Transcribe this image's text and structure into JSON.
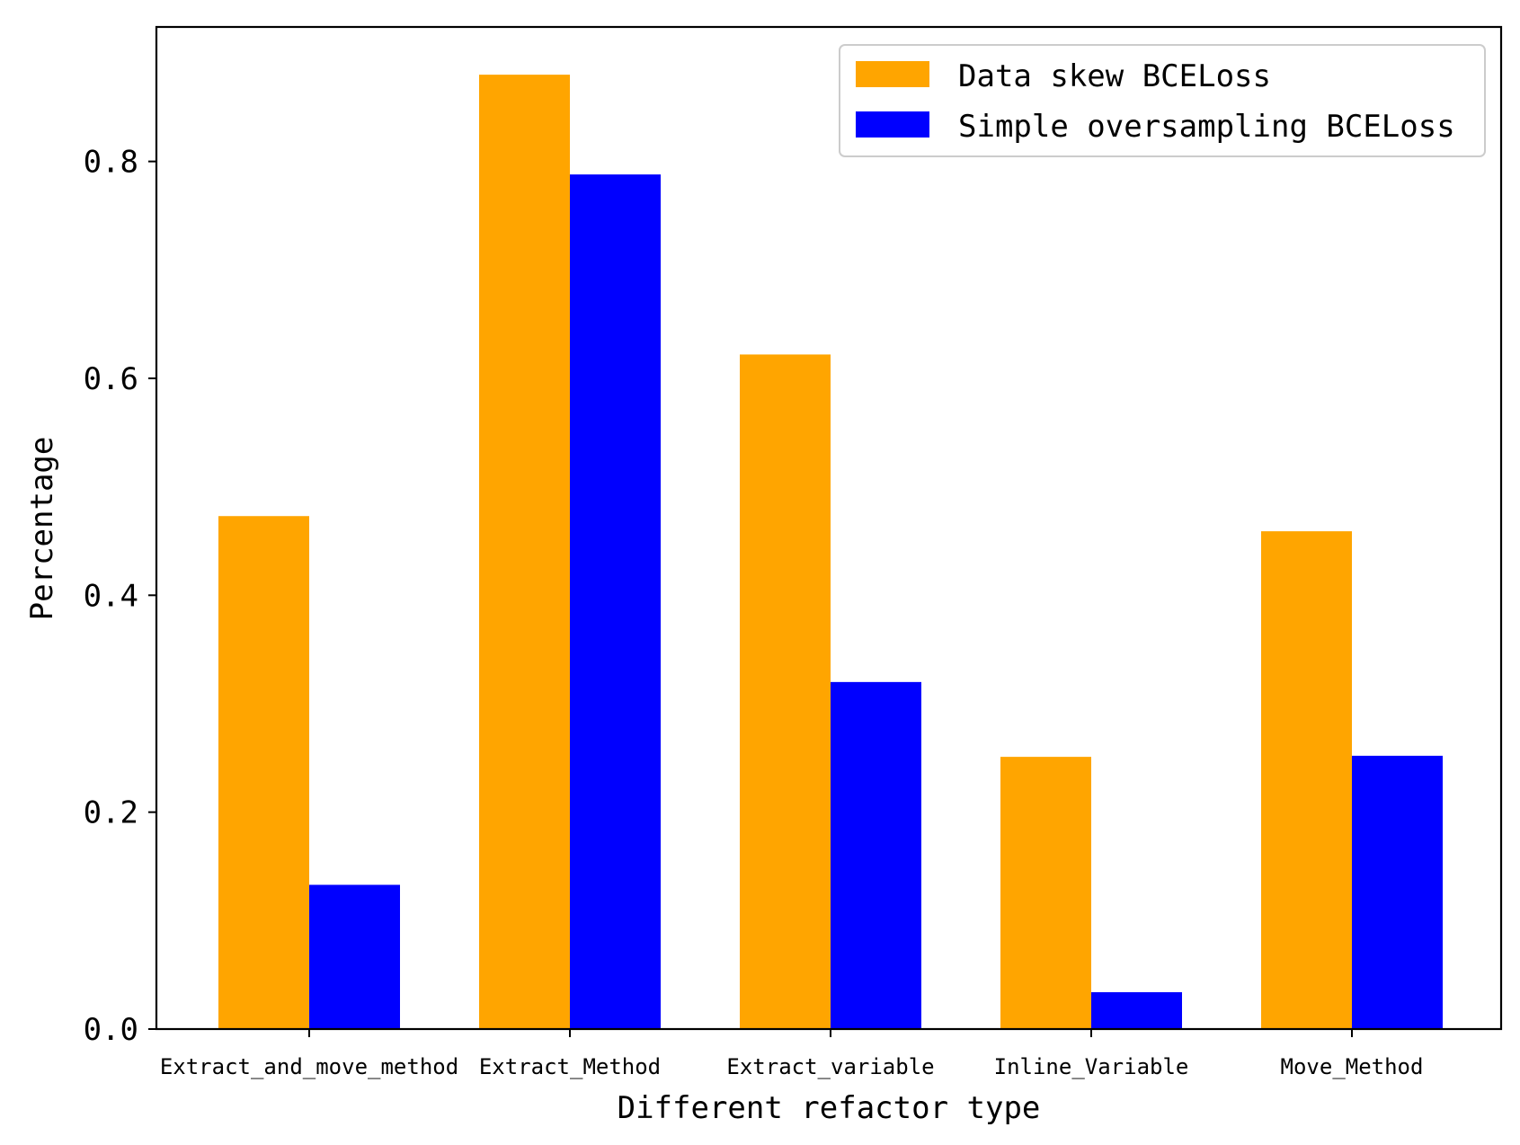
{
  "chart_data": {
    "type": "bar",
    "categories": [
      "Extract_and_move_method",
      "Extract_Method",
      "Extract_variable",
      "Inline_Variable",
      "Move_Method"
    ],
    "series": [
      {
        "name": "Data skew BCELoss",
        "color": "#ffa500",
        "values": [
          0.473,
          0.88,
          0.622,
          0.251,
          0.459
        ]
      },
      {
        "name": "Simple oversampling BCELoss",
        "color": "#0000ff",
        "values": [
          0.133,
          0.788,
          0.32,
          0.034,
          0.252
        ]
      }
    ],
    "xlabel": "Different refactor type",
    "ylabel": "Percentage",
    "ylim": [
      0,
      0.924
    ],
    "yticks": [
      0.0,
      0.2,
      0.4,
      0.6,
      0.8
    ],
    "ytick_labels": [
      "0.0",
      "0.2",
      "0.4",
      "0.6",
      "0.8"
    ],
    "legend": "top-right",
    "grid": false
  }
}
